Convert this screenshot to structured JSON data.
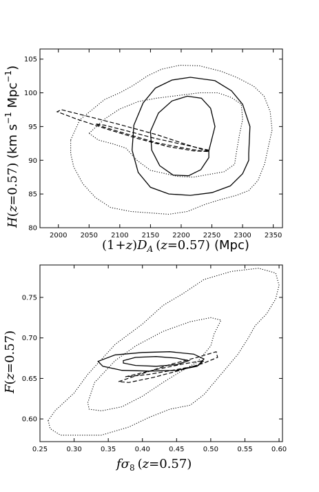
{
  "chart_data": [
    {
      "type": "scatter",
      "panel": "top",
      "xlabel_math": "(1+z)D_A(z=0.57)",
      "xlabel_text": "(1+z) D_A (z=0.57)",
      "xlabel_unit": "(Mpc)",
      "ylabel_math": "H(z=0.57)",
      "ylabel_text": "H(z=0.57)",
      "ylabel_unit": "(km s⁻¹ Mpc⁻¹)",
      "xlim": [
        1970,
        2365
      ],
      "ylim": [
        80,
        106.5
      ],
      "xticks": [
        "2000",
        "2050",
        "2100",
        "2150",
        "2200",
        "2250",
        "2300",
        "2350"
      ],
      "xtick_values": [
        2000,
        2050,
        2100,
        2150,
        2200,
        2250,
        2300,
        2350
      ],
      "yticks": [
        "80",
        "85",
        "90",
        "95",
        "100",
        "105"
      ],
      "ytick_values": [
        80,
        85,
        90,
        95,
        100,
        105
      ],
      "grid": false,
      "contours": [
        {
          "style": "solid",
          "level": "inner",
          "points": [
            [
              2245,
              91.4
            ],
            [
              2255,
              95
            ],
            [
              2248,
              97.7
            ],
            [
              2233,
              99.2
            ],
            [
              2210,
              99.5
            ],
            [
              2185,
              98.8
            ],
            [
              2163,
              97
            ],
            [
              2150,
              94.3
            ],
            [
              2152,
              91.5
            ],
            [
              2165,
              89.2
            ],
            [
              2187,
              87.8
            ],
            [
              2212,
              87.7
            ],
            [
              2232,
              88.6
            ],
            [
              2245,
              90.4
            ],
            [
              2245,
              91.4
            ]
          ]
        },
        {
          "style": "solid",
          "level": "outer",
          "points": [
            [
              2310,
              91
            ],
            [
              2312,
              95
            ],
            [
              2300,
              98.3
            ],
            [
              2282,
              100.3
            ],
            [
              2255,
              101.8
            ],
            [
              2215,
              102.3
            ],
            [
              2185,
              101.9
            ],
            [
              2158,
              100.7
            ],
            [
              2138,
              98.5
            ],
            [
              2123,
              95.2
            ],
            [
              2120,
              91.5
            ],
            [
              2130,
              88.2
            ],
            [
              2150,
              86
            ],
            [
              2180,
              85
            ],
            [
              2215,
              84.8
            ],
            [
              2250,
              85.2
            ],
            [
              2280,
              86.2
            ],
            [
              2300,
              88
            ],
            [
              2310,
              90
            ],
            [
              2310,
              91
            ]
          ]
        },
        {
          "style": "dashed",
          "level": "inner",
          "points": [
            [
              2245,
              91.5
            ],
            [
              2200,
              92.4
            ],
            [
              2155,
              93.3
            ],
            [
              2110,
              94.4
            ],
            [
              2075,
              95.2
            ],
            [
              2060,
              95.4
            ],
            [
              2075,
              94.9
            ],
            [
              2115,
              93.8
            ],
            [
              2160,
              92.6
            ],
            [
              2205,
              91.8
            ],
            [
              2232,
              91.4
            ],
            [
              2245,
              91.5
            ]
          ]
        },
        {
          "style": "dashed",
          "level": "outer",
          "points": [
            [
              2245,
              91.3
            ],
            [
              2210,
              92.3
            ],
            [
              2160,
              93.8
            ],
            [
              2100,
              95.3
            ],
            [
              2040,
              96.7
            ],
            [
              2005,
              97.5
            ],
            [
              1998,
              97.2
            ],
            [
              2030,
              96.1
            ],
            [
              2080,
              94.6
            ],
            [
              2130,
              93.2
            ],
            [
              2180,
              92
            ],
            [
              2220,
              91.4
            ],
            [
              2245,
              91.3
            ]
          ]
        },
        {
          "style": "dotted",
          "level": "inner",
          "points": [
            [
              2050,
              94
            ],
            [
              2075,
              96.1
            ],
            [
              2100,
              97.6
            ],
            [
              2130,
              98.7
            ],
            [
              2160,
              99.2
            ],
            [
              2195,
              99.6
            ],
            [
              2230,
              100
            ],
            [
              2260,
              100
            ],
            [
              2282,
              99.3
            ],
            [
              2298,
              98.3
            ],
            [
              2300,
              96
            ],
            [
              2295,
              93.8
            ],
            [
              2290,
              91.2
            ],
            [
              2287,
              89.4
            ],
            [
              2270,
              88.3
            ],
            [
              2245,
              87.9
            ],
            [
              2220,
              87.5
            ],
            [
              2195,
              87.6
            ],
            [
              2170,
              88.1
            ],
            [
              2150,
              88.5
            ],
            [
              2128,
              90
            ],
            [
              2110,
              91.8
            ],
            [
              2090,
              92.4
            ],
            [
              2065,
              93
            ],
            [
              2050,
              94
            ]
          ]
        },
        {
          "style": "dotted",
          "level": "outer",
          "points": [
            [
              2020,
              93
            ],
            [
              2035,
              96
            ],
            [
              2055,
              97.5
            ],
            [
              2075,
              99
            ],
            [
              2100,
              100
            ],
            [
              2120,
              101
            ],
            [
              2145,
              102.5
            ],
            [
              2168,
              103.5
            ],
            [
              2198,
              104.1
            ],
            [
              2230,
              104
            ],
            [
              2265,
              103.2
            ],
            [
              2290,
              102.3
            ],
            [
              2318,
              101
            ],
            [
              2335,
              99.5
            ],
            [
              2345,
              97.2
            ],
            [
              2348,
              94.5
            ],
            [
              2342,
              92
            ],
            [
              2336,
              89.5
            ],
            [
              2325,
              87
            ],
            [
              2310,
              85.5
            ],
            [
              2290,
              84.8
            ],
            [
              2265,
              84.2
            ],
            [
              2240,
              83.5
            ],
            [
              2210,
              82.4
            ],
            [
              2180,
              82
            ],
            [
              2148,
              82.2
            ],
            [
              2118,
              82.4
            ],
            [
              2085,
              83
            ],
            [
              2060,
              84.5
            ],
            [
              2040,
              86.5
            ],
            [
              2025,
              89
            ],
            [
              2020,
              91
            ],
            [
              2020,
              93
            ]
          ]
        }
      ]
    },
    {
      "type": "scatter",
      "panel": "bottom",
      "xlabel_math": "fσ₈(z=0.57)",
      "xlabel_text": "fσ₈ (z=0.57)",
      "ylabel_math": "F(z=0.57)",
      "ylabel_text": "F(z=0.57)",
      "xlim": [
        0.25,
        0.605
      ],
      "ylim": [
        0.572,
        0.79
      ],
      "xticks": [
        "0.25",
        "0.30",
        "0.35",
        "0.40",
        "0.45",
        "0.50",
        "0.55",
        "0.60"
      ],
      "xtick_values": [
        0.25,
        0.3,
        0.35,
        0.4,
        0.45,
        0.5,
        0.55,
        0.6
      ],
      "yticks": [
        "0.60",
        "0.65",
        "0.70",
        "0.75"
      ],
      "ytick_values": [
        0.6,
        0.65,
        0.7,
        0.75
      ],
      "grid": false,
      "contours": [
        {
          "style": "solid",
          "level": "inner",
          "points": [
            [
              0.372,
              0.672
            ],
            [
              0.39,
              0.676
            ],
            [
              0.42,
              0.677
            ],
            [
              0.45,
              0.675
            ],
            [
              0.468,
              0.672
            ],
            [
              0.45,
              0.667
            ],
            [
              0.42,
              0.665
            ],
            [
              0.39,
              0.666
            ],
            [
              0.372,
              0.669
            ],
            [
              0.372,
              0.672
            ]
          ]
        },
        {
          "style": "solid",
          "level": "outer",
          "points": [
            [
              0.335,
              0.671
            ],
            [
              0.36,
              0.679
            ],
            [
              0.4,
              0.682
            ],
            [
              0.44,
              0.683
            ],
            [
              0.475,
              0.68
            ],
            [
              0.49,
              0.674
            ],
            [
              0.48,
              0.665
            ],
            [
              0.45,
              0.66
            ],
            [
              0.41,
              0.659
            ],
            [
              0.37,
              0.66
            ],
            [
              0.342,
              0.665
            ],
            [
              0.335,
              0.671
            ]
          ]
        },
        {
          "style": "dashed",
          "level": "inner",
          "points": [
            [
              0.375,
              0.652
            ],
            [
              0.42,
              0.661
            ],
            [
              0.46,
              0.668
            ],
            [
              0.49,
              0.672
            ],
            [
              0.482,
              0.666
            ],
            [
              0.45,
              0.661
            ],
            [
              0.41,
              0.655
            ],
            [
              0.375,
              0.652
            ]
          ]
        },
        {
          "style": "dashed",
          "level": "outer",
          "points": [
            [
              0.365,
              0.646
            ],
            [
              0.4,
              0.656
            ],
            [
              0.44,
              0.667
            ],
            [
              0.48,
              0.676
            ],
            [
              0.508,
              0.683
            ],
            [
              0.51,
              0.676
            ],
            [
              0.49,
              0.669
            ],
            [
              0.455,
              0.66
            ],
            [
              0.415,
              0.651
            ],
            [
              0.38,
              0.645
            ],
            [
              0.365,
              0.646
            ]
          ]
        },
        {
          "style": "dotted",
          "level": "inner",
          "points": [
            [
              0.32,
              0.62
            ],
            [
              0.33,
              0.645
            ],
            [
              0.36,
              0.672
            ],
            [
              0.39,
              0.69
            ],
            [
              0.43,
              0.708
            ],
            [
              0.47,
              0.72
            ],
            [
              0.5,
              0.725
            ],
            [
              0.515,
              0.722
            ],
            [
              0.505,
              0.705
            ],
            [
              0.5,
              0.69
            ],
            [
              0.48,
              0.67
            ],
            [
              0.455,
              0.658
            ],
            [
              0.43,
              0.645
            ],
            [
              0.4,
              0.628
            ],
            [
              0.37,
              0.615
            ],
            [
              0.34,
              0.61
            ],
            [
              0.322,
              0.612
            ],
            [
              0.32,
              0.62
            ]
          ]
        },
        {
          "style": "dotted",
          "level": "outer",
          "points": [
            [
              0.262,
              0.598
            ],
            [
              0.272,
              0.61
            ],
            [
              0.3,
              0.632
            ],
            [
              0.32,
              0.655
            ],
            [
              0.36,
              0.692
            ],
            [
              0.4,
              0.717
            ],
            [
              0.43,
              0.74
            ],
            [
              0.46,
              0.755
            ],
            [
              0.49,
              0.772
            ],
            [
              0.53,
              0.782
            ],
            [
              0.57,
              0.786
            ],
            [
              0.595,
              0.78
            ],
            [
              0.6,
              0.765
            ],
            [
              0.595,
              0.748
            ],
            [
              0.582,
              0.73
            ],
            [
              0.565,
              0.715
            ],
            [
              0.555,
              0.7
            ],
            [
              0.54,
              0.68
            ],
            [
              0.52,
              0.66
            ],
            [
              0.5,
              0.64
            ],
            [
              0.49,
              0.63
            ],
            [
              0.47,
              0.617
            ],
            [
              0.44,
              0.612
            ],
            [
              0.41,
              0.602
            ],
            [
              0.38,
              0.59
            ],
            [
              0.34,
              0.58
            ],
            [
              0.3,
              0.58
            ],
            [
              0.28,
              0.58
            ],
            [
              0.265,
              0.588
            ],
            [
              0.262,
              0.598
            ]
          ]
        }
      ]
    }
  ]
}
